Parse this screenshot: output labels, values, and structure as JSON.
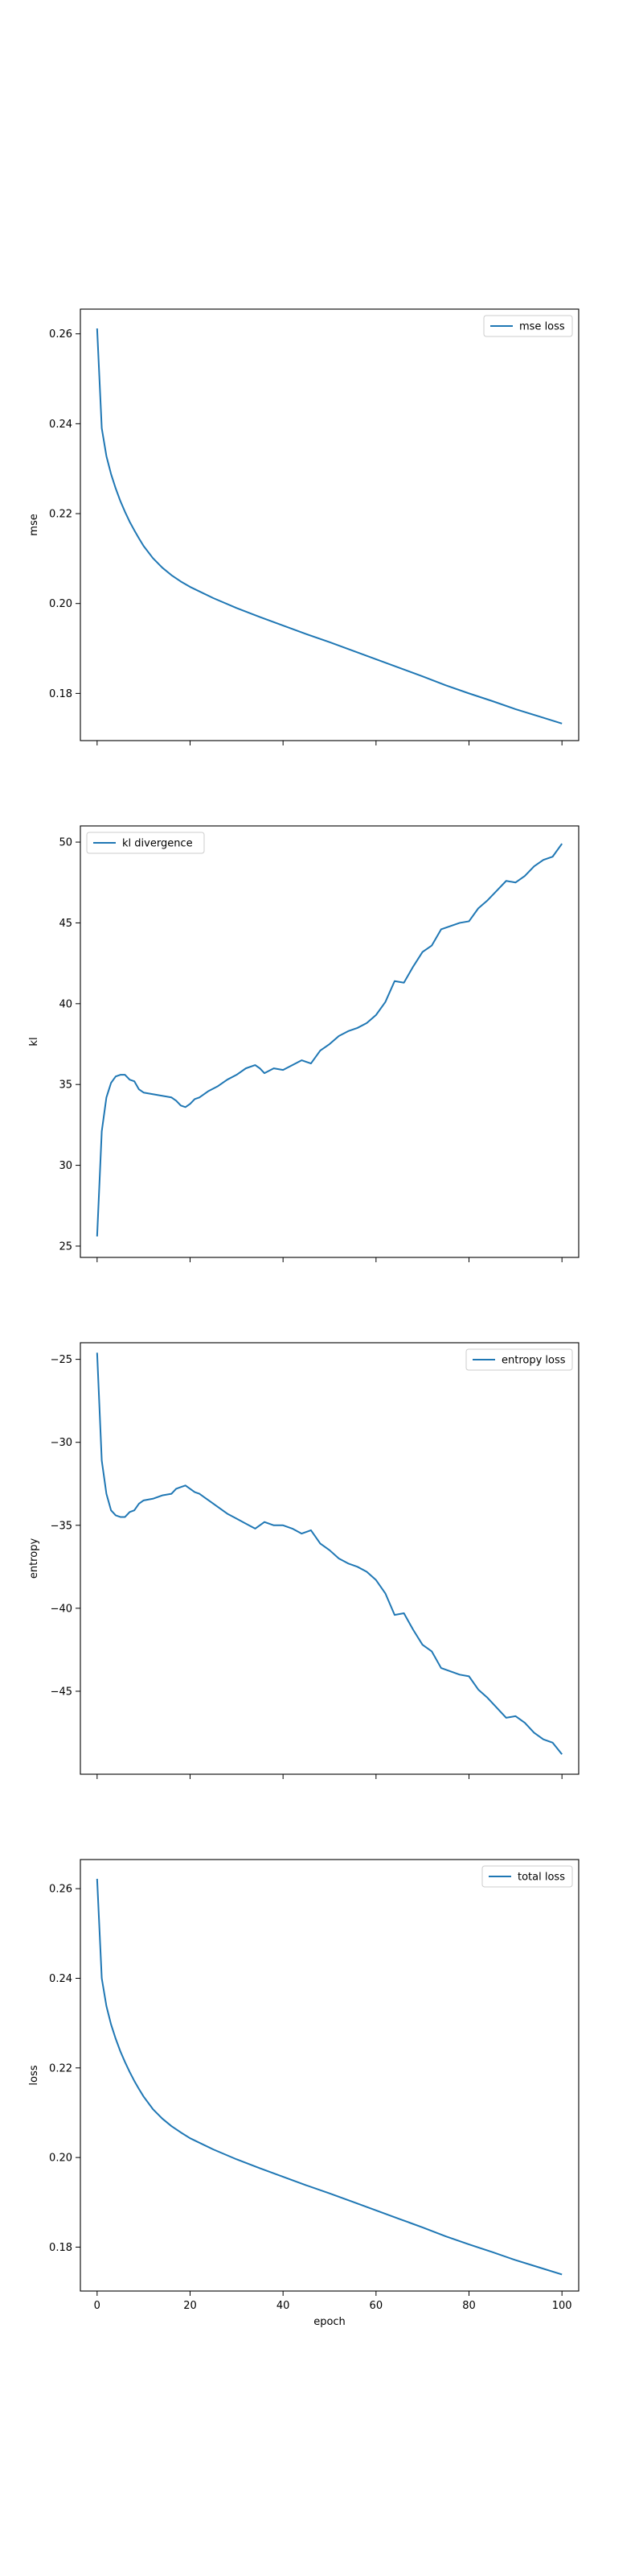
{
  "figure": {
    "line_color": "#1f77b4"
  },
  "chart_data": [
    {
      "type": "line",
      "xlabel": "",
      "ylabel": "mse",
      "xlim": [
        -3.6,
        103.6
      ],
      "ylim": [
        0.1695,
        0.2655
      ],
      "x_ticks": [
        0,
        20,
        40,
        60,
        80,
        100
      ],
      "y_ticks": [
        0.18,
        0.2,
        0.22,
        0.24,
        0.26
      ],
      "y_tick_labels": [
        "0.18",
        "0.20",
        "0.22",
        "0.24",
        "0.26"
      ],
      "x_tick_labels_shown": false,
      "legend": {
        "position": "upper right"
      },
      "grid": false,
      "series": [
        {
          "name": "mse loss",
          "x": [
            0,
            1,
            2,
            3,
            4,
            5,
            6,
            7,
            8,
            9,
            10,
            12,
            14,
            16,
            18,
            20,
            25,
            30,
            35,
            40,
            45,
            50,
            55,
            60,
            65,
            70,
            75,
            80,
            85,
            90,
            95,
            100
          ],
          "y": [
            0.2612,
            0.239,
            0.2328,
            0.2288,
            0.2256,
            0.2228,
            0.2204,
            0.2182,
            0.2163,
            0.2145,
            0.2128,
            0.2101,
            0.208,
            0.2063,
            0.2049,
            0.2037,
            0.2012,
            0.199,
            0.197,
            0.1951,
            0.1932,
            0.1914,
            0.1895,
            0.1876,
            0.1857,
            0.1838,
            0.1818,
            0.18,
            0.1783,
            0.1765,
            0.1749,
            0.1733
          ]
        }
      ]
    },
    {
      "type": "line",
      "xlabel": "",
      "ylabel": "kl",
      "xlim": [
        -3.6,
        103.6
      ],
      "ylim": [
        24.3,
        51.0
      ],
      "x_ticks": [
        0,
        20,
        40,
        60,
        80,
        100
      ],
      "y_ticks": [
        25,
        30,
        35,
        40,
        45,
        50
      ],
      "y_tick_labels": [
        "25",
        "30",
        "35",
        "40",
        "45",
        "50"
      ],
      "x_tick_labels_shown": false,
      "legend": {
        "position": "upper left"
      },
      "grid": false,
      "series": [
        {
          "name": "kl divergence",
          "x": [
            0,
            1,
            2,
            3,
            4,
            5,
            6,
            7,
            8,
            9,
            10,
            12,
            14,
            16,
            17,
            18,
            19,
            20,
            21,
            22,
            24,
            26,
            28,
            30,
            32,
            34,
            35,
            36,
            38,
            40,
            42,
            44,
            46,
            47,
            48,
            50,
            52,
            54,
            56,
            58,
            60,
            62,
            64,
            66,
            68,
            70,
            72,
            74,
            76,
            78,
            80,
            82,
            84,
            86,
            88,
            90,
            92,
            94,
            96,
            98,
            100
          ],
          "y": [
            25.6,
            32.1,
            34.2,
            35.1,
            35.5,
            35.6,
            35.6,
            35.3,
            35.2,
            34.7,
            34.5,
            34.4,
            34.3,
            34.2,
            34.0,
            33.7,
            33.6,
            33.8,
            34.1,
            34.2,
            34.6,
            34.9,
            35.3,
            35.6,
            36.0,
            36.2,
            36.0,
            35.7,
            36.0,
            35.9,
            36.2,
            36.5,
            36.3,
            36.7,
            37.1,
            37.5,
            38.0,
            38.3,
            38.5,
            38.8,
            39.3,
            40.1,
            41.4,
            41.3,
            42.3,
            43.2,
            43.6,
            44.6,
            44.8,
            45.0,
            45.1,
            45.9,
            46.4,
            47.0,
            47.6,
            47.5,
            47.9,
            48.5,
            48.9,
            49.1,
            49.9
          ]
        }
      ]
    },
    {
      "type": "line",
      "xlabel": "",
      "ylabel": "entropy",
      "xlim": [
        -3.6,
        103.6
      ],
      "ylim": [
        -50.0,
        -24.0
      ],
      "x_ticks": [
        0,
        20,
        40,
        60,
        80,
        100
      ],
      "y_ticks": [
        -45,
        -40,
        -35,
        -30,
        -25
      ],
      "y_tick_labels": [
        "−45",
        "−40",
        "−35",
        "−30",
        "−25"
      ],
      "x_tick_labels_shown": false,
      "legend": {
        "position": "upper right"
      },
      "grid": false,
      "series": [
        {
          "name": "entropy loss",
          "x": [
            0,
            1,
            2,
            3,
            4,
            5,
            6,
            7,
            8,
            9,
            10,
            12,
            14,
            16,
            17,
            18,
            19,
            20,
            21,
            22,
            24,
            26,
            28,
            30,
            32,
            34,
            35,
            36,
            38,
            40,
            42,
            44,
            46,
            47,
            48,
            50,
            52,
            54,
            56,
            58,
            60,
            62,
            64,
            66,
            68,
            70,
            72,
            74,
            76,
            78,
            80,
            82,
            84,
            86,
            88,
            90,
            92,
            94,
            96,
            98,
            100
          ],
          "y": [
            -24.6,
            -31.1,
            -33.1,
            -34.1,
            -34.4,
            -34.5,
            -34.5,
            -34.2,
            -34.1,
            -33.7,
            -33.5,
            -33.4,
            -33.2,
            -33.1,
            -32.8,
            -32.7,
            -32.6,
            -32.8,
            -33.0,
            -33.1,
            -33.5,
            -33.9,
            -34.3,
            -34.6,
            -34.9,
            -35.2,
            -35.0,
            -34.8,
            -35.0,
            -35.0,
            -35.2,
            -35.5,
            -35.3,
            -35.7,
            -36.1,
            -36.5,
            -37.0,
            -37.3,
            -37.5,
            -37.8,
            -38.3,
            -39.1,
            -40.4,
            -40.3,
            -41.3,
            -42.2,
            -42.6,
            -43.6,
            -43.8,
            -44.0,
            -44.1,
            -44.9,
            -45.4,
            -46.0,
            -46.6,
            -46.5,
            -46.9,
            -47.5,
            -47.9,
            -48.1,
            -48.8
          ]
        }
      ]
    },
    {
      "type": "line",
      "xlabel": "epoch",
      "ylabel": "loss",
      "xlim": [
        -3.6,
        103.6
      ],
      "ylim": [
        0.1702,
        0.2665
      ],
      "x_ticks": [
        0,
        20,
        40,
        60,
        80,
        100
      ],
      "x_tick_labels": [
        "0",
        "20",
        "40",
        "60",
        "80",
        "100"
      ],
      "y_ticks": [
        0.18,
        0.2,
        0.22,
        0.24,
        0.26
      ],
      "y_tick_labels": [
        "0.18",
        "0.20",
        "0.22",
        "0.24",
        "0.26"
      ],
      "x_tick_labels_shown": true,
      "legend": {
        "position": "upper right"
      },
      "grid": false,
      "series": [
        {
          "name": "total loss",
          "x": [
            0,
            1,
            2,
            3,
            4,
            5,
            6,
            7,
            8,
            9,
            10,
            12,
            14,
            16,
            18,
            20,
            25,
            30,
            35,
            40,
            45,
            50,
            55,
            60,
            65,
            70,
            75,
            80,
            85,
            90,
            95,
            100
          ],
          "y": [
            0.2622,
            0.24,
            0.2338,
            0.2297,
            0.2265,
            0.2237,
            0.2213,
            0.2191,
            0.2171,
            0.2153,
            0.2136,
            0.2108,
            0.2087,
            0.207,
            0.2056,
            0.2043,
            0.2018,
            0.1996,
            0.1976,
            0.1957,
            0.1938,
            0.192,
            0.1901,
            0.1882,
            0.1863,
            0.1844,
            0.1824,
            0.1806,
            0.1789,
            0.1771,
            0.1755,
            0.1739
          ]
        }
      ]
    }
  ]
}
